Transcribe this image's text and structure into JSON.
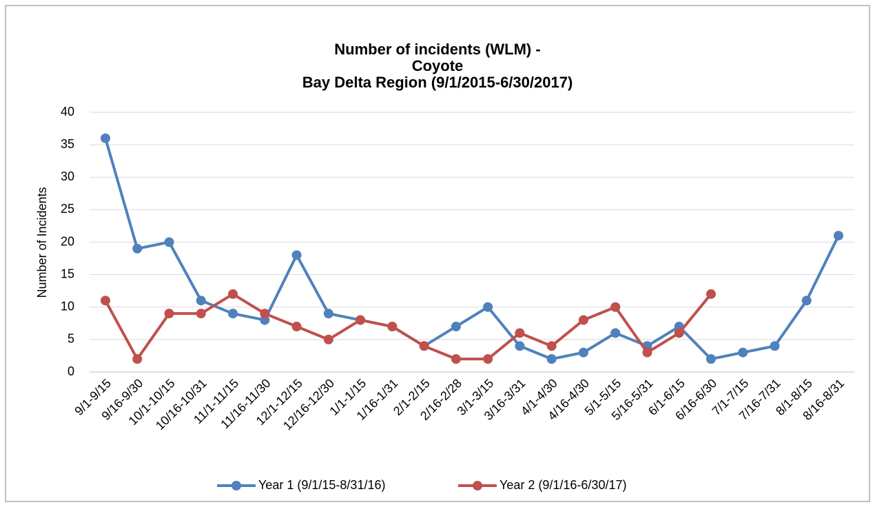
{
  "chart_data": {
    "type": "line",
    "title": [
      "Number of incidents (WLM) -",
      "Coyote",
      "Bay Delta Region (9/1/2015-6/30/2017)"
    ],
    "y_label": "Number of Incidents",
    "categories": [
      "9/1-9/15",
      "9/16-9/30",
      "10/1-10/15",
      "10/16-10/31",
      "11/1-11/15",
      "11/16-11/30",
      "12/1-12/15",
      "12/16-12/30",
      "1/1-1/15",
      "1/16-1/31",
      "2/1-2/15",
      "2/16-2/28",
      "3/1-3/15",
      "3/16-3/31",
      "4/1-4/30",
      "4/16-4/30",
      "5/1-5/15",
      "5/16-5/31",
      "6/1-6/15",
      "6/16-6/30",
      "7/1-7/15",
      "7/16-7/31",
      "8/1-8/15",
      "8/16-8/31"
    ],
    "series": [
      {
        "name": "Year 1 (9/1/15-8/31/16)",
        "color": "#4f81bd",
        "values": [
          36,
          19,
          20,
          11,
          9,
          8,
          18,
          9,
          8,
          7,
          4,
          7,
          10,
          4,
          2,
          3,
          6,
          4,
          7,
          2,
          3,
          4,
          11,
          21
        ]
      },
      {
        "name": "Year 2 (9/1/16-6/30/17)",
        "color": "#c0504d",
        "values": [
          11,
          2,
          9,
          9,
          12,
          9,
          7,
          5,
          8,
          7,
          4,
          2,
          2,
          6,
          4,
          8,
          10,
          3,
          6,
          12,
          null,
          null,
          null,
          null
        ]
      }
    ],
    "ylim": [
      0,
      40
    ],
    "yticks": [
      0,
      5,
      10,
      15,
      20,
      25,
      30,
      35,
      40
    ],
    "grid": true,
    "legend": "bottom"
  }
}
